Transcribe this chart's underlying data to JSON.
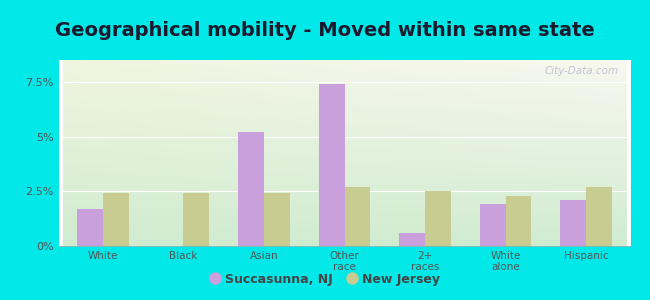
{
  "title": "Geographical mobility - Moved within same state",
  "categories": [
    "White",
    "Black",
    "Asian",
    "Other\nrace",
    "2+\nraces",
    "White\nalone",
    "Hispanic"
  ],
  "succasunna": [
    1.7,
    0.0,
    5.2,
    7.4,
    0.6,
    1.9,
    2.1
  ],
  "new_jersey": [
    2.4,
    2.4,
    2.4,
    2.7,
    2.5,
    2.3,
    2.7
  ],
  "succasunna_color": "#c9a0dc",
  "new_jersey_color": "#c8cc90",
  "background_outer": "#00e8e8",
  "background_inner_topleft": "#f0f5e0",
  "background_inner_topright": "#f8f8f0",
  "background_inner_bottom": "#d0ecd0",
  "yticks": [
    0.0,
    2.5,
    5.0,
    7.5
  ],
  "ytick_labels": [
    "0%",
    "2.5%",
    "5%",
    "7.5%"
  ],
  "ylim": [
    0,
    8.5
  ],
  "title_fontsize": 14,
  "legend_label_1": "Succasunna, NJ",
  "legend_label_2": "New Jersey",
  "watermark": "City-Data.com"
}
